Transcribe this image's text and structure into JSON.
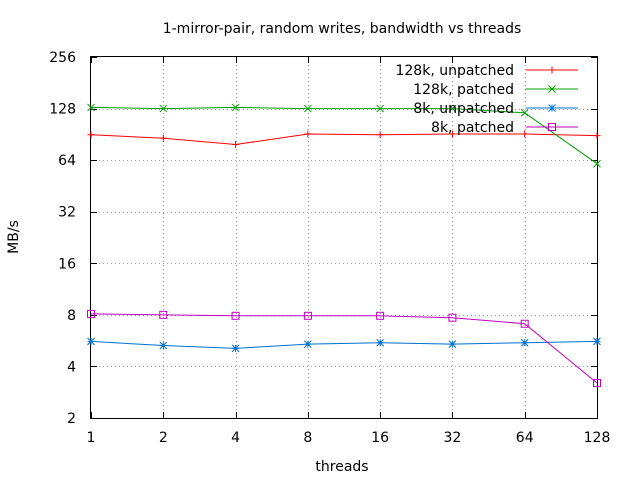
{
  "chart_data": {
    "type": "line",
    "title": "1-mirror-pair, random writes, bandwidth vs threads",
    "xlabel": "threads",
    "ylabel": "MB/s",
    "x_scale": "log2",
    "y_scale": "log2",
    "x": [
      1,
      2,
      4,
      8,
      16,
      32,
      64,
      128
    ],
    "x_tick_labels": [
      "1",
      "2",
      "4",
      "8",
      "16",
      "32",
      "64",
      "128"
    ],
    "y_ticks": [
      2,
      4,
      8,
      16,
      32,
      64,
      128,
      256
    ],
    "y_tick_labels": [
      "2",
      "4",
      "8",
      "16",
      "32",
      "64",
      "128",
      "256"
    ],
    "xlim": [
      1,
      128
    ],
    "ylim": [
      2,
      256
    ],
    "grid": true,
    "legend_position": "top-right",
    "series": [
      {
        "name": "128k, unpatched",
        "color": "#ff0000",
        "marker": "plus",
        "values": [
          90,
          86,
          79,
          91,
          90,
          91,
          91,
          89
        ]
      },
      {
        "name": "128k, patched",
        "color": "#00a000",
        "marker": "cross",
        "values": [
          130,
          128,
          130,
          128,
          128,
          128,
          121,
          61
        ]
      },
      {
        "name": "8k, unpatched",
        "color": "#0070cf",
        "marker": "star",
        "values": [
          5.6,
          5.3,
          5.1,
          5.4,
          5.5,
          5.4,
          5.5,
          5.6
        ]
      },
      {
        "name": "8k, patched",
        "color": "#c000c0",
        "marker": "square",
        "values": [
          8.1,
          8.0,
          7.9,
          7.9,
          7.9,
          7.7,
          7.1,
          3.2
        ]
      }
    ]
  }
}
